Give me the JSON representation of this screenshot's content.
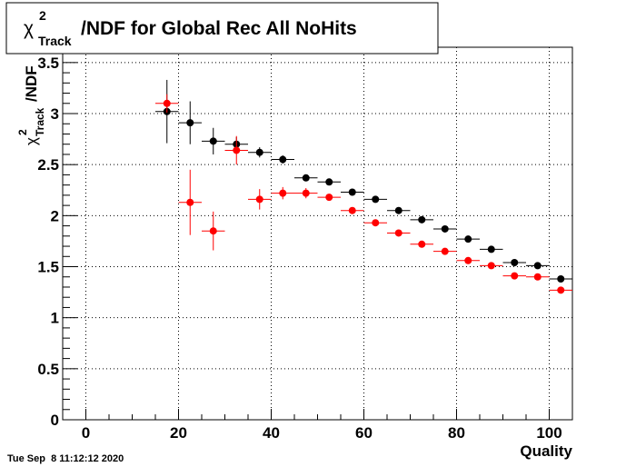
{
  "chart_data": {
    "type": "scatter",
    "title": {
      "prefix": "χ",
      "sup": "2",
      "sub": "Track",
      "text": "/NDF for Global Rec All NoHits"
    },
    "xlabel": "Quality",
    "ylabel": {
      "prefix": "χ",
      "sup": "2",
      "sub": "Track",
      "text": "/NDF"
    },
    "xlim": [
      -5,
      105
    ],
    "ylim": [
      0,
      3.65
    ],
    "xticks": [
      0,
      20,
      40,
      60,
      80,
      100
    ],
    "xtick_labels": [
      "0",
      "20",
      "40",
      "60",
      "80",
      "100"
    ],
    "yticks": [
      0,
      0.5,
      1,
      1.5,
      2,
      2.5,
      3,
      3.5
    ],
    "ytick_labels": [
      "0",
      "0.5",
      "1",
      "1.5",
      "2",
      "2.5",
      "3",
      "3.5"
    ],
    "grid": true,
    "legend": null,
    "x_bin_halfwidth": 2.5,
    "series": [
      {
        "color": "#000000",
        "points": [
          {
            "x": 17.5,
            "y": 3.02,
            "yerr": 0.31
          },
          {
            "x": 22.5,
            "y": 2.91,
            "yerr": 0.21
          },
          {
            "x": 27.5,
            "y": 2.73,
            "yerr": 0.13
          },
          {
            "x": 32.5,
            "y": 2.7,
            "yerr": 0.07
          },
          {
            "x": 37.5,
            "y": 2.62,
            "yerr": 0.05
          },
          {
            "x": 42.5,
            "y": 2.55,
            "yerr": 0.04
          },
          {
            "x": 47.5,
            "y": 2.37,
            "yerr": 0.02
          },
          {
            "x": 52.5,
            "y": 2.33,
            "yerr": 0.02
          },
          {
            "x": 57.5,
            "y": 2.23,
            "yerr": 0.02
          },
          {
            "x": 62.5,
            "y": 2.16,
            "yerr": 0.02
          },
          {
            "x": 67.5,
            "y": 2.05,
            "yerr": 0.02
          },
          {
            "x": 72.5,
            "y": 1.96,
            "yerr": 0.02
          },
          {
            "x": 77.5,
            "y": 1.87,
            "yerr": 0.02
          },
          {
            "x": 82.5,
            "y": 1.77,
            "yerr": 0.02
          },
          {
            "x": 87.5,
            "y": 1.67,
            "yerr": 0.02
          },
          {
            "x": 92.5,
            "y": 1.54,
            "yerr": 0.02
          },
          {
            "x": 97.5,
            "y": 1.51,
            "yerr": 0.02
          },
          {
            "x": 102.5,
            "y": 1.38,
            "yerr": 0.02
          }
        ]
      },
      {
        "color": "#ff0000",
        "points": [
          {
            "x": 17.5,
            "y": 3.1,
            "yerr": 0.09
          },
          {
            "x": 22.5,
            "y": 2.13,
            "yerr": 0.32
          },
          {
            "x": 27.5,
            "y": 1.85,
            "yerr": 0.19
          },
          {
            "x": 32.5,
            "y": 2.64,
            "yerr": 0.14
          },
          {
            "x": 37.5,
            "y": 2.16,
            "yerr": 0.1
          },
          {
            "x": 42.5,
            "y": 2.22,
            "yerr": 0.06
          },
          {
            "x": 47.5,
            "y": 2.22,
            "yerr": 0.05
          },
          {
            "x": 52.5,
            "y": 2.18,
            "yerr": 0.02
          },
          {
            "x": 57.5,
            "y": 2.05,
            "yerr": 0.02
          },
          {
            "x": 62.5,
            "y": 1.93,
            "yerr": 0.02
          },
          {
            "x": 67.5,
            "y": 1.83,
            "yerr": 0.02
          },
          {
            "x": 72.5,
            "y": 1.72,
            "yerr": 0.02
          },
          {
            "x": 77.5,
            "y": 1.65,
            "yerr": 0.02
          },
          {
            "x": 82.5,
            "y": 1.56,
            "yerr": 0.02
          },
          {
            "x": 87.5,
            "y": 1.51,
            "yerr": 0.02
          },
          {
            "x": 92.5,
            "y": 1.41,
            "yerr": 0.02
          },
          {
            "x": 97.5,
            "y": 1.4,
            "yerr": 0.02
          },
          {
            "x": 102.5,
            "y": 1.27,
            "yerr": 0.02
          }
        ]
      }
    ]
  },
  "footer": {
    "timestamp": "Tue Sep  8 11:12:12 2020"
  }
}
